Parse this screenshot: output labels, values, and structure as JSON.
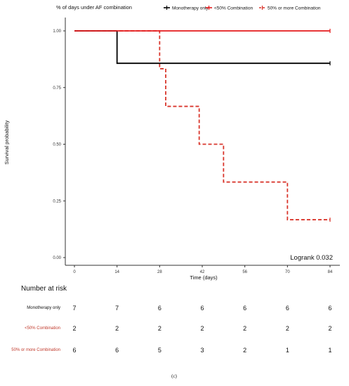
{
  "chart_data": {
    "type": "line",
    "subtype": "kaplan-meier",
    "legend": {
      "title": "% of days under AF combination",
      "placement": "top",
      "entries": [
        "Monotherapy only",
        "<50% Combination",
        "50% or more Combination"
      ]
    },
    "xlabel": "Time (days)",
    "ylabel": "Survival probability",
    "xlim": [
      0,
      84
    ],
    "ylim": [
      0,
      1
    ],
    "xticks": [
      0,
      14,
      28,
      42,
      56,
      70,
      84
    ],
    "xtick_labels": [
      "0",
      "14",
      "28",
      "42",
      "56",
      "70",
      "84"
    ],
    "yticks": [
      0,
      0.25,
      0.5,
      0.75,
      1
    ],
    "ytick_labels": [
      "0.00",
      "0.25",
      "0.50",
      "0.75",
      "1.00"
    ],
    "grid": false,
    "series": [
      {
        "name": "Monotherapy only",
        "color": "#000000",
        "dash": "solid",
        "steps": [
          [
            0,
            1.0
          ],
          [
            14,
            0.857
          ],
          [
            84,
            0.857
          ]
        ]
      },
      {
        "name": "<50% Combination",
        "color": "#e41a1c",
        "dash": "solid",
        "steps": [
          [
            0,
            1.0
          ],
          [
            84,
            1.0
          ]
        ]
      },
      {
        "name": "50% or more Combination",
        "color": "#d9362c",
        "dash": "dashed",
        "steps": [
          [
            0,
            1.0
          ],
          [
            28,
            0.833
          ],
          [
            30,
            0.667
          ],
          [
            41,
            0.5
          ],
          [
            49,
            0.333
          ],
          [
            70,
            0.167
          ],
          [
            84,
            0.167
          ]
        ]
      }
    ],
    "annotation": "Logrank 0.032",
    "risk_table": {
      "title": "Number at risk",
      "times": [
        0,
        14,
        28,
        42,
        56,
        70,
        84
      ],
      "rows": [
        {
          "label": "Monotherapy only",
          "color": "#111111",
          "values": [
            7,
            7,
            6,
            6,
            6,
            6,
            6
          ]
        },
        {
          "label": "<50% Combination",
          "color": "#c0392b",
          "values": [
            2,
            2,
            2,
            2,
            2,
            2,
            2
          ]
        },
        {
          "label": "50% or more Combination",
          "color": "#c0392b",
          "values": [
            6,
            6,
            5,
            3,
            2,
            1,
            1
          ]
        }
      ]
    }
  },
  "caption": "(c)"
}
